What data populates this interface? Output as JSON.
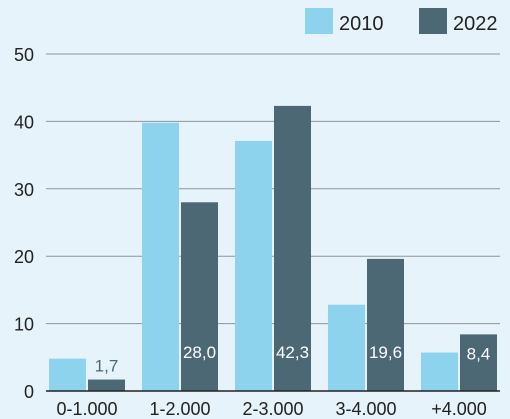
{
  "chart_data": {
    "type": "bar",
    "categories": [
      "0-1.000",
      "1-2.000",
      "2-3.000",
      "3-4.000",
      "+4.000"
    ],
    "series": [
      {
        "name": "2010",
        "values": [
          4.8,
          39.8,
          37.1,
          12.8,
          5.7
        ],
        "color": "#8dd3ee",
        "labels": [
          "",
          "",
          "",
          "",
          ""
        ]
      },
      {
        "name": "2022",
        "values": [
          1.7,
          28.0,
          42.3,
          19.6,
          8.4
        ],
        "color": "#4b6874",
        "labels": [
          "1,7",
          "28,0",
          "42,3",
          "19,6",
          "8,4"
        ]
      }
    ],
    "ylim": [
      0,
      50
    ],
    "yticks": [
      "0",
      "10",
      "20",
      "30",
      "40",
      "50"
    ],
    "grid": true,
    "legend_position": "top-right",
    "title": "",
    "xlabel": "",
    "ylabel": ""
  },
  "colors": {
    "background": "#e6f3fa",
    "grid": "#8e9498",
    "axis": "#222222",
    "label_dark": "#ffffff",
    "label_light": "#4b6874"
  }
}
